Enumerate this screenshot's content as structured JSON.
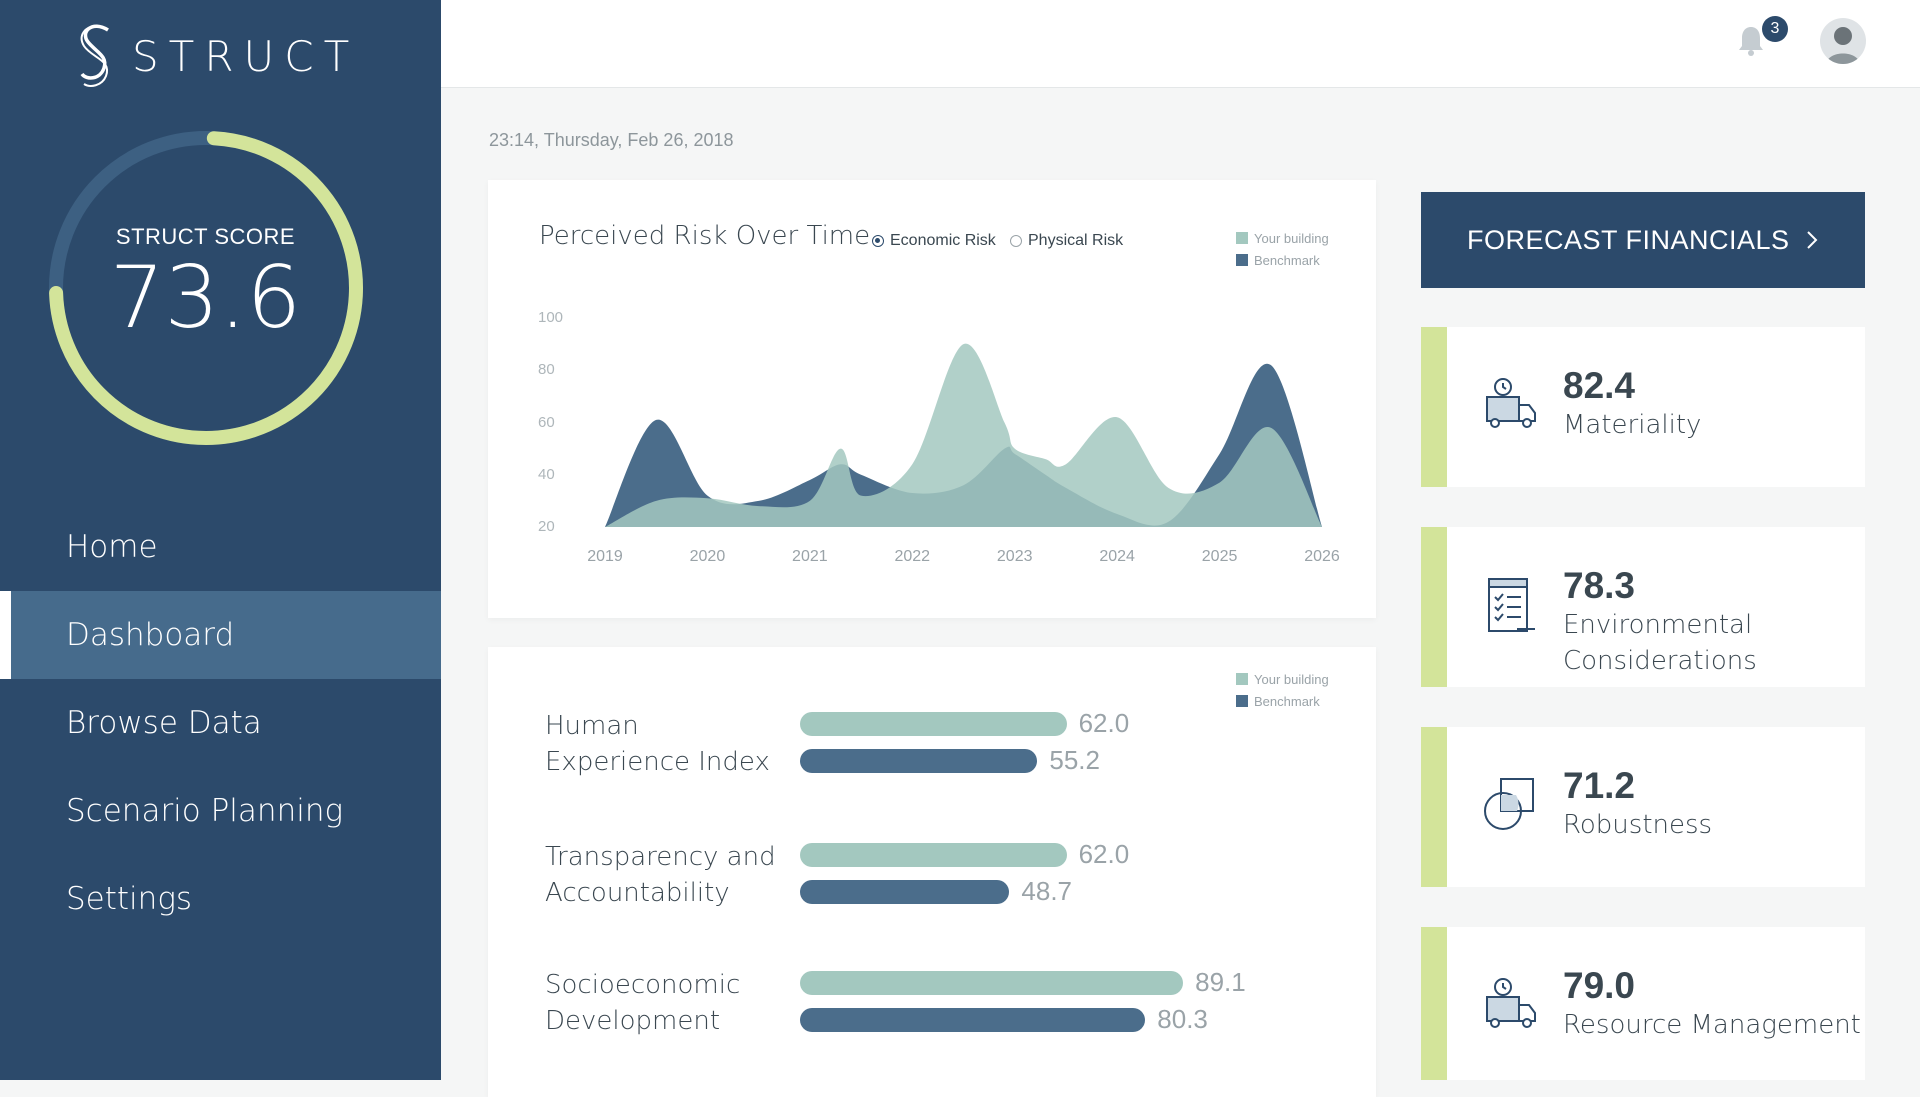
{
  "brand": {
    "name": "STRUCT"
  },
  "score": {
    "label": "STRUCT SCORE",
    "value": "73.6",
    "fraction": 0.736
  },
  "nav": [
    {
      "label": "Home",
      "active": false
    },
    {
      "label": "Dashboard",
      "active": true
    },
    {
      "label": "Browse Data",
      "active": false
    },
    {
      "label": "Scenario Planning",
      "active": false
    },
    {
      "label": "Settings",
      "active": false
    }
  ],
  "notifications": {
    "count": "3",
    "icon": "bell-icon"
  },
  "user": {
    "icon": "avatar"
  },
  "datetime": "23:14, Thursday, Feb 26, 2018",
  "risk_chart": {
    "title": "Perceived Risk Over Time",
    "toggle": [
      {
        "label": "Economic Risk",
        "selected": true
      },
      {
        "label": "Physical Risk",
        "selected": false
      }
    ],
    "legend": [
      "Your building",
      "Benchmark"
    ]
  },
  "bars_legend": [
    "Your building",
    "Benchmark"
  ],
  "colors": {
    "sidebar": "#2c4a6b",
    "your_building": "#a3c8bf",
    "benchmark": "#4b6d8b",
    "accent": "#d3e49a"
  },
  "chart_data": [
    {
      "type": "area",
      "title": "Perceived Risk Over Time",
      "x": [
        "2019",
        "2019.5",
        "2020",
        "2020.5",
        "2021",
        "2021.3",
        "2021.5",
        "2022",
        "2022.5",
        "2022.9",
        "2023",
        "2023.3",
        "2023.5",
        "2024",
        "2024.5",
        "2025",
        "2025.5",
        "2026"
      ],
      "xticks": [
        "2019",
        "2020",
        "2021",
        "2022",
        "2023",
        "2024",
        "2025",
        "2026"
      ],
      "yticks": [
        100,
        80,
        60,
        40,
        20
      ],
      "ylim": [
        20,
        100
      ],
      "series": [
        {
          "name": "Benchmark",
          "values": [
            20,
            61,
            32,
            30,
            38,
            44,
            40,
            33,
            36,
            50,
            48,
            40,
            35,
            25,
            22,
            48,
            82,
            20
          ]
        },
        {
          "name": "Your building",
          "values": [
            20,
            30,
            31,
            28,
            30,
            50,
            32,
            44,
            90,
            60,
            50,
            46,
            44,
            62,
            35,
            37,
            58,
            20
          ]
        }
      ]
    },
    {
      "type": "bar",
      "categories": [
        "Human Experience Index",
        "Transparency and Accountability",
        "Socioeconomic Development"
      ],
      "category_lines": [
        [
          "Human",
          "Experience Index"
        ],
        [
          "Transparency and",
          "Accountability"
        ],
        [
          "Socioeconomic",
          "Development"
        ]
      ],
      "series": [
        {
          "name": "Your building",
          "values": [
            62.0,
            62.0,
            89.1
          ],
          "labels": [
            "62.0",
            "62.0",
            "89.1"
          ]
        },
        {
          "name": "Benchmark",
          "values": [
            55.2,
            48.7,
            80.3
          ],
          "labels": [
            "55.2",
            "48.7",
            "80.3"
          ]
        }
      ]
    }
  ],
  "forecast": {
    "label": "FORECAST FINANCIALS"
  },
  "metrics": [
    {
      "value": "82.4",
      "lines": [
        "Materiality"
      ],
      "icon": "delivery-truck-icon"
    },
    {
      "value": "78.3",
      "lines": [
        "Environmental",
        "Considerations"
      ],
      "icon": "checklist-icon"
    },
    {
      "value": "71.2",
      "lines": [
        "Robustness"
      ],
      "icon": "overlap-shapes-icon"
    },
    {
      "value": "79.0",
      "lines": [
        "Resource Management"
      ],
      "icon": "delivery-truck-icon"
    }
  ]
}
